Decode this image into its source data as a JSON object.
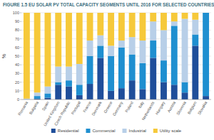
{
  "chart_data": {
    "type": "bar",
    "title": "FIGURE 1.5 EU SOLAR PV TOTAL CAPACITY SEGMENTS UNTIL 2016 FOR SELECTED COUNTRIES",
    "ylabel": "%",
    "categories": [
      "Romania",
      "Bulgaria",
      "Spain",
      "United Kingdom",
      "Czech Republic",
      "Portugal",
      "France",
      "Denmark",
      "Greece",
      "Germany",
      "Poland",
      "Italy",
      "Netherlands",
      "Hungary",
      "Austria",
      "Slovenia",
      "Belgium",
      "Slovakia"
    ],
    "series": [
      {
        "name": "Residential",
        "color": "#1f4e9a",
        "values": [
          0,
          1,
          2,
          17,
          15,
          5,
          18,
          48,
          10,
          13,
          22,
          12,
          48,
          20,
          17,
          8,
          62,
          4
        ]
      },
      {
        "name": "Commercial",
        "color": "#1f8fd0",
        "values": [
          0,
          3,
          5,
          3,
          7,
          12,
          32,
          14,
          40,
          47,
          30,
          30,
          20,
          25,
          68,
          12,
          13,
          96
        ]
      },
      {
        "name": "Industrial",
        "color": "#b8cfe8",
        "values": [
          1,
          4,
          8,
          18,
          16,
          24,
          18,
          12,
          12,
          8,
          20,
          26,
          22,
          35,
          5,
          73,
          17,
          0
        ]
      },
      {
        "name": "Utility scale",
        "color": "#f6c93a",
        "values": [
          99,
          92,
          85,
          62,
          62,
          59,
          32,
          26,
          38,
          32,
          28,
          32,
          10,
          20,
          10,
          7,
          8,
          0
        ]
      }
    ],
    "stacked": true,
    "grid": true,
    "legend": "bottom",
    "ylim": [
      0,
      100
    ],
    "yticks": [
      0,
      10,
      20,
      30,
      40,
      50,
      60,
      70,
      80,
      90,
      100
    ]
  }
}
